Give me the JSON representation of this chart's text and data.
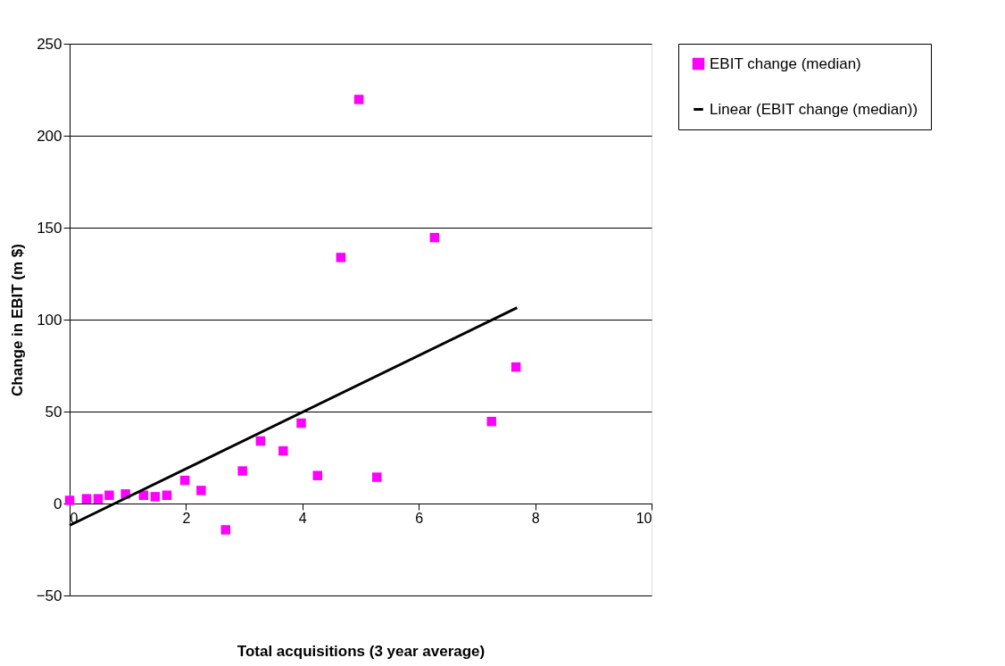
{
  "chart_data": {
    "type": "scatter",
    "xlabel": "Total acquisitions (3 year average)",
    "ylabel": "Change in EBIT (m $)",
    "xlim": [
      0,
      10
    ],
    "xticks": [
      0,
      2,
      4,
      6,
      8,
      10
    ],
    "ylim": [
      -50,
      250
    ],
    "yticks": [
      -50,
      0,
      50,
      100,
      150,
      200,
      250
    ],
    "grid": "y",
    "legend": "right",
    "series": [
      {
        "name": "EBIT change (median)",
        "color": "#ff00ff",
        "marker": "square",
        "x": [
          0,
          0.29,
          0.49,
          0.68,
          0.96,
          1.27,
          1.47,
          1.67,
          1.98,
          2.26,
          2.68,
          2.97,
          3.28,
          3.67,
          3.98,
          4.26,
          4.66,
          4.97,
          5.28,
          6.27,
          7.25,
          7.67
        ],
        "values": [
          1.7,
          2.6,
          2.6,
          4.5,
          5.2,
          4.5,
          3.7,
          4.5,
          12.6,
          7.1,
          -14.3,
          17.7,
          34,
          28.6,
          43.7,
          15.2,
          133.8,
          219.7,
          14.3,
          144.6,
          44.6,
          74.2
        ]
      },
      {
        "name": "Linear (EBIT change (median))",
        "type": "line",
        "color": "#000000",
        "x": [
          0,
          7.69
        ],
        "values": [
          -11.9,
          106.5
        ]
      }
    ]
  }
}
